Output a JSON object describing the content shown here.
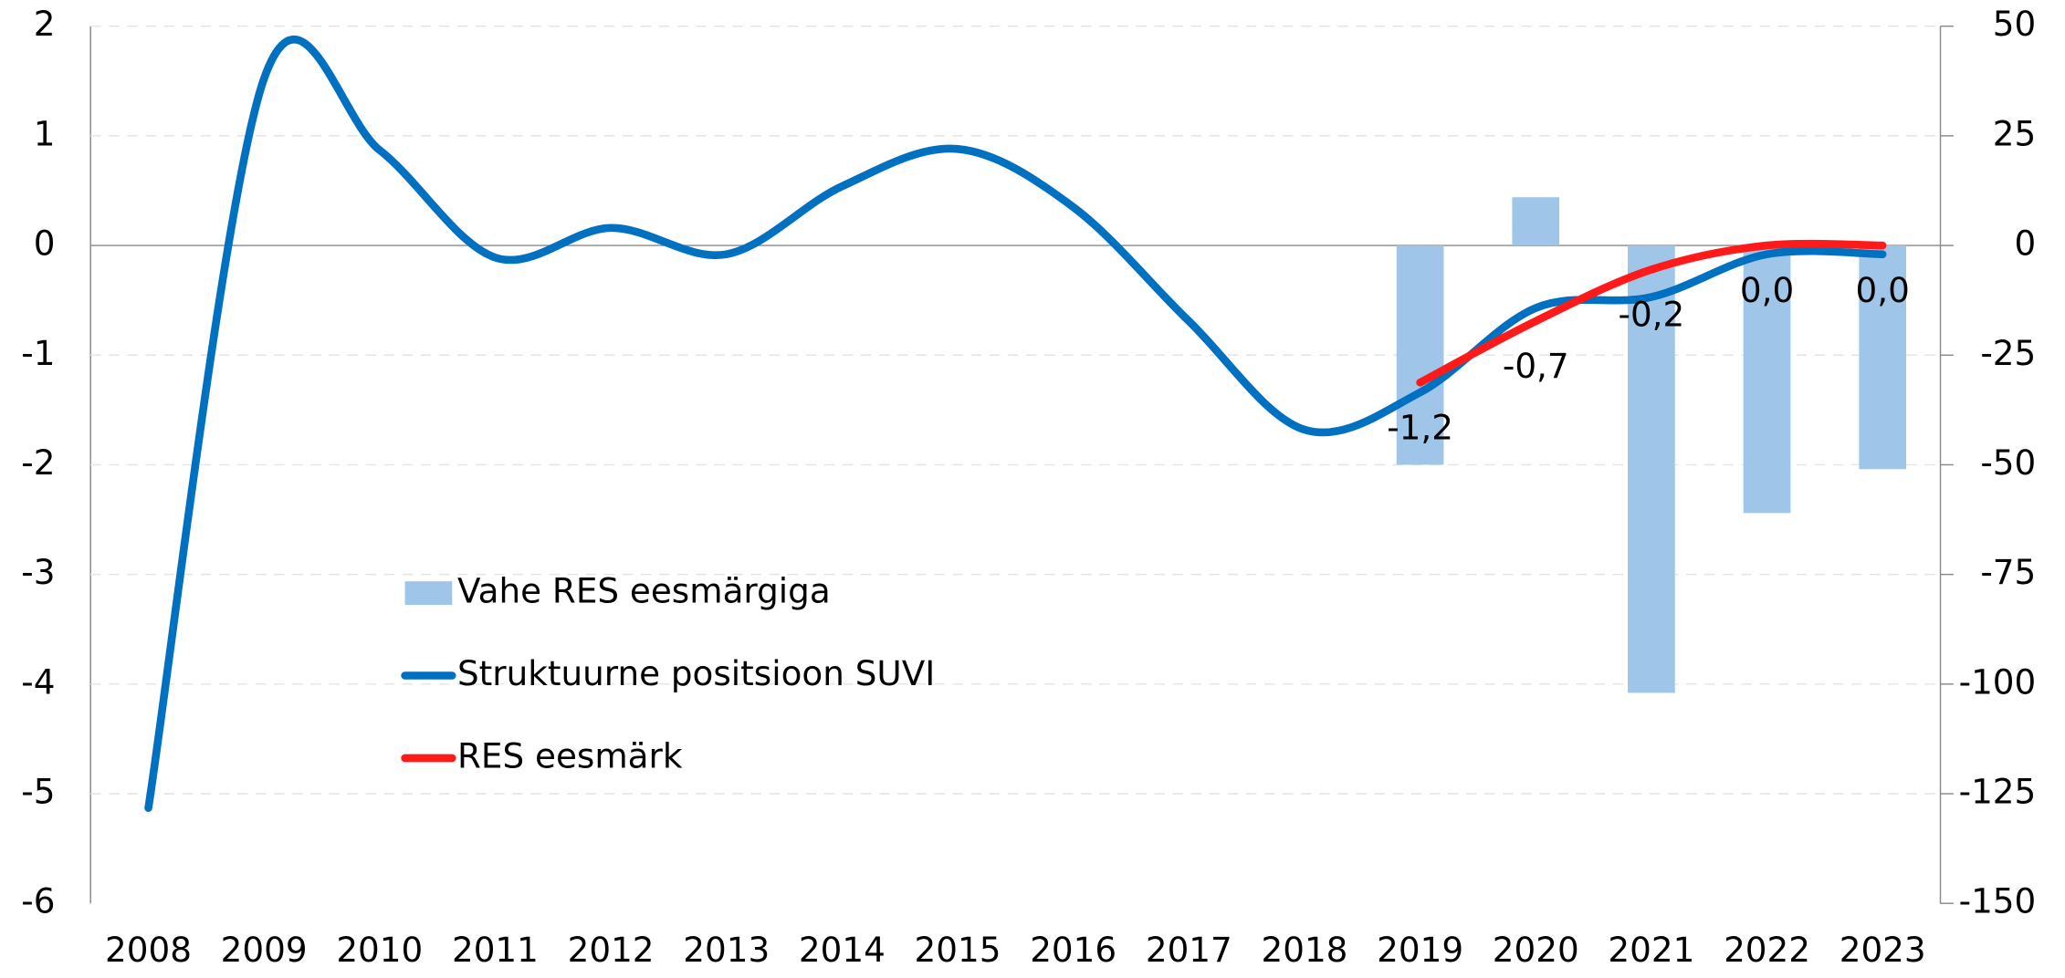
{
  "chart_data": {
    "type": "combo",
    "categories": [
      "2008",
      "2009",
      "2010",
      "2011",
      "2012",
      "2013",
      "2014",
      "2015",
      "2016",
      "2017",
      "2018",
      "2019",
      "2020",
      "2021",
      "2022",
      "2023"
    ],
    "ylim": [
      -6,
      2
    ],
    "yticks": [
      -6,
      -5,
      -4,
      -3,
      -2,
      -1,
      0,
      1,
      2
    ],
    "y2lim": [
      -150,
      50
    ],
    "y2ticks": [
      -150,
      -125,
      -100,
      -75,
      -50,
      -25,
      0,
      25,
      50
    ],
    "grid": true,
    "legend": "left",
    "series": [
      {
        "name": "Vahe RES eesmärgiga",
        "type": "bar",
        "axis": "y2",
        "color": "#9fc5e8",
        "values": [
          null,
          null,
          null,
          null,
          null,
          null,
          null,
          null,
          null,
          null,
          null,
          -50,
          11,
          -102,
          -61,
          -51
        ]
      },
      {
        "name": "Struktuurne positsioon SUVI",
        "type": "line",
        "color": "#0070c0",
        "values": [
          -5.13,
          1.52,
          0.87,
          -0.11,
          0.16,
          -0.08,
          0.54,
          0.88,
          0.35,
          -0.69,
          -1.68,
          -1.34,
          -0.57,
          -0.47,
          -0.08,
          -0.08
        ]
      },
      {
        "name": "RES eesmärk",
        "type": "line",
        "color": "#ff1a1a",
        "values": [
          null,
          null,
          null,
          null,
          null,
          null,
          null,
          null,
          null,
          null,
          null,
          -1.25,
          -0.69,
          -0.22,
          0.0,
          0.0
        ],
        "value_labels": [
          null,
          null,
          null,
          null,
          null,
          null,
          null,
          null,
          null,
          null,
          null,
          "-1,2",
          "-0,7",
          "-0,2",
          "0,0",
          "0,0"
        ]
      }
    ]
  }
}
